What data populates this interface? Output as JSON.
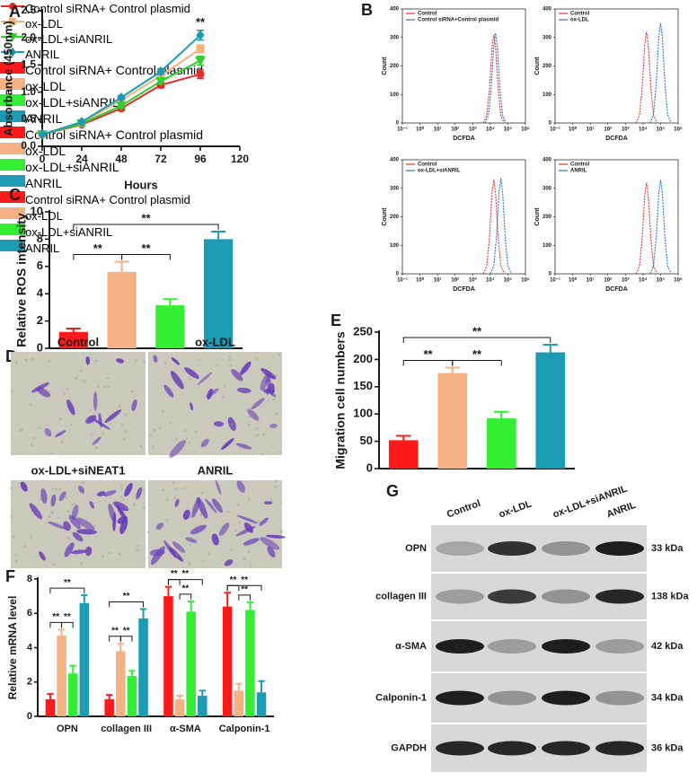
{
  "panels": [
    "A",
    "B",
    "C",
    "D",
    "E",
    "F",
    "G"
  ],
  "chart_data": [
    {
      "type": "line",
      "xlabel": "Hours",
      "ylabel": "Absorbance (450nm)",
      "x": [
        0,
        24,
        48,
        72,
        96
      ],
      "xlim": [
        0,
        120
      ],
      "xticks": [
        0,
        24,
        48,
        72,
        96,
        120
      ],
      "ylim": [
        0,
        2.5
      ],
      "yticks": [
        {
          "value": 0,
          "label": "0.0"
        },
        0.5,
        {
          "value": 1,
          "label": "1.0"
        },
        1.5,
        {
          "value": 2,
          "label": "2.0"
        },
        2.5
      ],
      "series": [
        {
          "name": "Control siRNA+\nControl plasmid",
          "color": "#e8282b",
          "marker": "circle",
          "values": [
            0.22,
            0.4,
            0.7,
            1.13,
            1.33
          ],
          "errors": [
            0.02,
            0.03,
            0.04,
            0.05,
            0.08
          ]
        },
        {
          "name": "ox-LDL",
          "color": "#f5b37c",
          "marker": "square",
          "values": [
            0.22,
            0.43,
            0.85,
            1.3,
            1.8
          ],
          "errors": [
            0.02,
            0.03,
            0.05,
            0.05,
            0.07
          ]
        },
        {
          "name": "ox-LDL+siANRIL",
          "color": "#2fd12f",
          "marker": "triangle-down",
          "values": [
            0.22,
            0.42,
            0.75,
            1.2,
            1.58
          ],
          "errors": [
            0.02,
            0.03,
            0.04,
            0.05,
            0.08
          ]
        },
        {
          "name": "ANRIL",
          "color": "#1d9bb2",
          "marker": "diamond",
          "values": [
            0.22,
            0.45,
            0.9,
            1.38,
            2.05
          ],
          "errors": [
            0.02,
            0.03,
            0.04,
            0.05,
            0.09
          ]
        }
      ],
      "annotations": [
        {
          "text": "**",
          "x": 96
        }
      ],
      "legend": "right"
    },
    {
      "type": "density",
      "xlabel": "DCFDA",
      "ylabel": "Count",
      "xscale": "log",
      "xlim": [
        0.1,
        1000000
      ],
      "xticks": [
        {
          "value": 0.1,
          "label": "10⁻¹"
        },
        {
          "value": 1,
          "label": "10⁰"
        },
        {
          "value": 10,
          "label": "10¹"
        },
        {
          "value": 100,
          "label": "10²"
        },
        {
          "value": 1000,
          "label": "10³"
        },
        {
          "value": 10000,
          "label": "10⁴"
        },
        {
          "value": 100000,
          "label": "10⁵"
        },
        {
          "value": 1000000,
          "label": "10⁶"
        }
      ],
      "ylim": [
        0,
        400
      ],
      "yticks": [
        0,
        100,
        200,
        300,
        400
      ],
      "legend": "top-left",
      "series": [
        {
          "name": "Control",
          "color": "#e8333a",
          "x": [
            4000,
            6300,
            8900,
            12600,
            15800,
            20000,
            28200,
            39800,
            63100
          ],
          "values": [
            0,
            26,
            118,
            267,
            310,
            267,
            118,
            26,
            0
          ]
        },
        {
          "name": "Control siRNA+Control plasmid",
          "color": "#2f6fd6",
          "x": [
            5000,
            7900,
            11200,
            15800,
            20000,
            25100,
            35500,
            50100,
            79400
          ],
          "values": [
            0,
            27,
            120,
            271,
            315,
            271,
            120,
            27,
            0
          ]
        }
      ]
    },
    {
      "type": "density",
      "xlabel": "DCFDA",
      "ylabel": "Count",
      "xscale": "log",
      "xlim": [
        0.1,
        1000000
      ],
      "xticks": [
        {
          "value": 0.1,
          "label": "10⁻¹"
        },
        {
          "value": 1,
          "label": "10⁰"
        },
        {
          "value": 10,
          "label": "10¹"
        },
        {
          "value": 100,
          "label": "10²"
        },
        {
          "value": 1000,
          "label": "10³"
        },
        {
          "value": 10000,
          "label": "10⁴"
        },
        {
          "value": 100000,
          "label": "10⁵"
        },
        {
          "value": 1000000,
          "label": "10⁶"
        }
      ],
      "ylim": [
        0,
        400
      ],
      "yticks": [
        0,
        100,
        200,
        300,
        400
      ],
      "legend": "top-left",
      "series": [
        {
          "name": "Control",
          "color": "#e8333a",
          "x": [
            4000,
            6300,
            8900,
            12600,
            15800,
            20000,
            28200,
            39800,
            63100
          ],
          "values": [
            0,
            27,
            122,
            275,
            320,
            275,
            122,
            27,
            0
          ]
        },
        {
          "name": "ox-LDL",
          "color": "#2f6fd6",
          "x": [
            25100,
            39800,
            56200,
            79400,
            100000,
            126000,
            178000,
            251000,
            398000
          ],
          "values": [
            0,
            30,
            133,
            301,
            350,
            301,
            133,
            30,
            0
          ]
        }
      ]
    },
    {
      "type": "density",
      "xlabel": "DCFDA",
      "ylabel": "Count",
      "xscale": "log",
      "xlim": [
        0.1,
        1000000
      ],
      "xticks": [
        {
          "value": 0.1,
          "label": "10⁻¹"
        },
        {
          "value": 1,
          "label": "10⁰"
        },
        {
          "value": 10,
          "label": "10¹"
        },
        {
          "value": 100,
          "label": "10²"
        },
        {
          "value": 1000,
          "label": "10³"
        },
        {
          "value": 10000,
          "label": "10⁴"
        },
        {
          "value": 100000,
          "label": "10⁵"
        },
        {
          "value": 1000000,
          "label": "10⁶"
        }
      ],
      "ylim": [
        0,
        400
      ],
      "yticks": [
        0,
        100,
        200,
        300,
        400
      ],
      "legend": "top-left",
      "series": [
        {
          "name": "Control",
          "color": "#e8333a",
          "x": [
            4000,
            6300,
            8900,
            12600,
            15800,
            20000,
            28200,
            39800,
            63100
          ],
          "values": [
            0,
            28,
            125,
            284,
            330,
            284,
            125,
            28,
            0
          ]
        },
        {
          "name": "ox-LDL+siANRIL",
          "color": "#2f6fd6",
          "x": [
            10000,
            15800,
            22400,
            31600,
            39800,
            50100,
            70800,
            100000,
            158000
          ],
          "values": [
            0,
            28,
            127,
            288,
            335,
            288,
            127,
            28,
            0
          ]
        }
      ]
    },
    {
      "type": "density",
      "xlabel": "DCFDA",
      "ylabel": "Count",
      "xscale": "log",
      "xlim": [
        0.1,
        1000000
      ],
      "xticks": [
        {
          "value": 0.1,
          "label": "10⁻¹"
        },
        {
          "value": 1,
          "label": "10⁰"
        },
        {
          "value": 10,
          "label": "10¹"
        },
        {
          "value": 100,
          "label": "10²"
        },
        {
          "value": 1000,
          "label": "10³"
        },
        {
          "value": 10000,
          "label": "10⁴"
        },
        {
          "value": 100000,
          "label": "10⁵"
        },
        {
          "value": 1000000,
          "label": "10⁶"
        }
      ],
      "ylim": [
        0,
        400
      ],
      "yticks": [
        0,
        100,
        200,
        300,
        400
      ],
      "legend": "top-left",
      "series": [
        {
          "name": "Control",
          "color": "#e8333a",
          "x": [
            4000,
            6300,
            8900,
            12600,
            15800,
            20000,
            28200,
            39800,
            63100
          ],
          "values": [
            0,
            27,
            122,
            275,
            320,
            275,
            122,
            27,
            0
          ]
        },
        {
          "name": "ANRIL",
          "color": "#2f6fd6",
          "x": [
            25100,
            39800,
            56200,
            79400,
            100000,
            126000,
            178000,
            251000,
            398000
          ],
          "values": [
            0,
            28,
            125,
            284,
            330,
            284,
            125,
            28,
            0
          ]
        }
      ]
    },
    {
      "type": "bar",
      "ylabel": "Relative ROS intensity",
      "categories": [
        "Control siRNA+\nControl plasmid",
        "ox-LDL",
        "ox-LDL+siANRIL",
        "ANRIL"
      ],
      "values": [
        1.2,
        5.6,
        3.15,
        8.0
      ],
      "errors": [
        0.25,
        0.75,
        0.45,
        0.55
      ],
      "colors": [
        "#ff1a1a",
        "#f4b183",
        "#33ee33",
        "#1d9bb2"
      ],
      "ylim": [
        0,
        10
      ],
      "yticks": [
        0,
        2,
        4,
        6,
        8,
        10
      ],
      "legend": "right",
      "brackets": [
        {
          "from": 0,
          "to": 3,
          "label": "**"
        },
        {
          "from": 0,
          "to": 1,
          "label": "**"
        },
        {
          "from": 1,
          "to": 2,
          "label": "**"
        }
      ]
    },
    {
      "type": "bar",
      "ylabel": "Migration cell numbers",
      "categories": [
        "Control siRNA+\nControl plasmid",
        "ox-LDL",
        "ox-LDL+siANRIL",
        "ANRIL"
      ],
      "values": [
        52,
        175,
        92,
        213
      ],
      "errors": [
        8,
        10,
        12,
        14
      ],
      "colors": [
        "#ff1a1a",
        "#f4b183",
        "#33ee33",
        "#1d9bb2"
      ],
      "ylim": [
        0,
        250
      ],
      "yticks": [
        0,
        50,
        100,
        150,
        200,
        250
      ],
      "legend": "right",
      "brackets": [
        {
          "from": 0,
          "to": 3,
          "label": "**"
        },
        {
          "from": 0,
          "to": 1,
          "label": "**"
        },
        {
          "from": 1,
          "to": 2,
          "label": "**"
        }
      ]
    },
    {
      "type": "bar",
      "ylabel": "Relative mRNA level",
      "categories": [
        "OPN",
        "collagen III",
        "α-SMA",
        "Calponin-1"
      ],
      "ylim": [
        0,
        8
      ],
      "yticks": [
        0,
        2,
        4,
        6,
        8
      ],
      "legend": "right",
      "series": [
        {
          "name": "Control siRNA+\nControl plasmid",
          "color": "#ff1a1a",
          "values": [
            1.0,
            1.0,
            7.0,
            6.4
          ],
          "errors": [
            0.3,
            0.25,
            0.55,
            0.8
          ]
        },
        {
          "name": "ox-LDL",
          "color": "#f4b183",
          "values": [
            4.7,
            3.8,
            1.0,
            1.5
          ],
          "errors": [
            0.35,
            0.45,
            0.2,
            0.4
          ]
        },
        {
          "name": "ox-LDL+siANRIL",
          "color": "#33ee33",
          "values": [
            2.5,
            2.35,
            6.1,
            6.2
          ],
          "errors": [
            0.45,
            0.3,
            0.6,
            0.45
          ]
        },
        {
          "name": "ANRIL",
          "color": "#1d9bb2",
          "values": [
            6.6,
            5.7,
            1.2,
            1.4
          ],
          "errors": [
            0.45,
            0.55,
            0.3,
            0.65
          ]
        }
      ],
      "brackets": [
        {
          "category": 0,
          "from": 0,
          "to": 1,
          "label": "**"
        },
        {
          "category": 0,
          "from": 1,
          "to": 2,
          "label": "**"
        },
        {
          "category": 0,
          "from": 0,
          "to": 3,
          "label": "**"
        },
        {
          "category": 1,
          "from": 0,
          "to": 1,
          "label": "**"
        },
        {
          "category": 1,
          "from": 1,
          "to": 2,
          "label": "**"
        },
        {
          "category": 1,
          "from": 0,
          "to": 3,
          "label": "**"
        },
        {
          "category": 2,
          "from": 0,
          "to": 1,
          "label": "**"
        },
        {
          "category": 2,
          "from": 1,
          "to": 2,
          "label": "**"
        },
        {
          "category": 2,
          "from": 0,
          "to": 3,
          "label": "**"
        },
        {
          "category": 3,
          "from": 0,
          "to": 1,
          "label": "**"
        },
        {
          "category": 3,
          "from": 1,
          "to": 2,
          "label": "**"
        },
        {
          "category": 3,
          "from": 0,
          "to": 3,
          "label": "**"
        }
      ]
    }
  ],
  "images": {
    "labels": [
      "Control",
      "ox-LDL",
      "ox-LDL+siNEAT1",
      "ANRIL"
    ]
  },
  "blot": {
    "columns": [
      "Control",
      "ox-LDL",
      "ox-LDL+siANRIL",
      "ANRIL"
    ],
    "rows": [
      {
        "label": "OPN",
        "size": "33 kDa"
      },
      {
        "label": "collagen III",
        "size": "138 kDa"
      },
      {
        "label": "α-SMA",
        "size": "42 kDa"
      },
      {
        "label": "Calponin-1",
        "size": "34 kDa"
      },
      {
        "label": "GAPDH",
        "size": "36 kDa"
      }
    ]
  }
}
